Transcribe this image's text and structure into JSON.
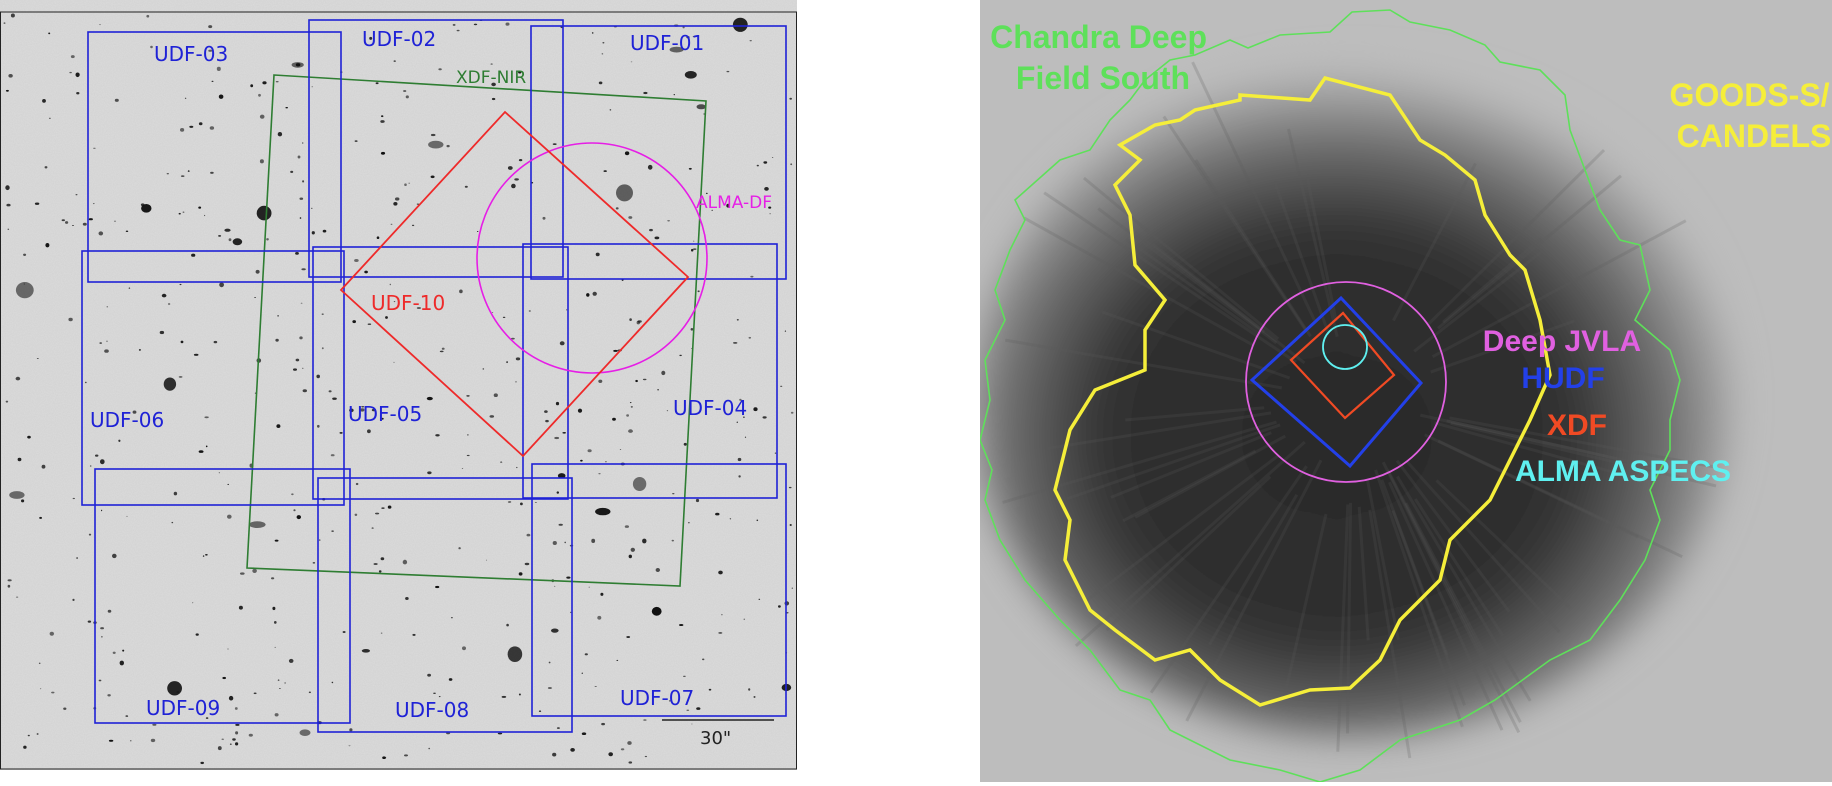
{
  "left": {
    "fields": {
      "udf01": "UDF-01",
      "udf02": "UDF-02",
      "udf03": "UDF-03",
      "udf04": "UDF-04",
      "udf05": "UDF-05",
      "udf06": "UDF-06",
      "udf07": "UDF-07",
      "udf08": "UDF-08",
      "udf09": "UDF-09",
      "udf10": "UDF-10"
    },
    "xdf_nir": "XDF-NIR",
    "alma_df": "ALMA-DF",
    "scale_bar": "30\""
  },
  "right": {
    "chandra": [
      "Chandra Deep",
      "Field South"
    ],
    "goods": [
      "GOODS-S/",
      "CANDELS"
    ],
    "legend": {
      "jvla": "Deep JVLA",
      "hudf": "HUDF",
      "xdf": "XDF",
      "alma": "ALMA ASPECS"
    }
  },
  "colors": {
    "udf_blue": "#1f22d6",
    "xdf_nir_green": "#2e7d32",
    "udf10_red": "#ee2a2a",
    "alma_df_magenta": "#e61ee6",
    "chandra_green": "#5ee05a",
    "goods_yellow": "#f5ee3a",
    "jvla_pink": "#e060e0",
    "hudf_blue": "#2340e8",
    "xdf_orange": "#f04a24",
    "aspecs_cyan": "#5ff0f0"
  }
}
